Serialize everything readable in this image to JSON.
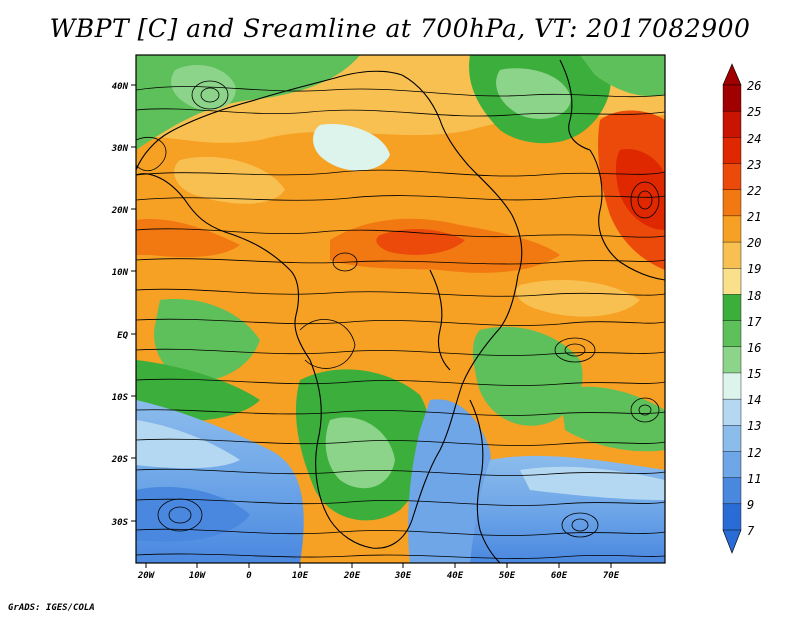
{
  "title": "WBPT [C] and Sreamline at 700hPa, VT: 2017082900",
  "credit": "GrADS: IGES/COLA",
  "map": {
    "lat_ticks": [
      "40N",
      "30N",
      "20N",
      "10N",
      "EQ",
      "10S",
      "20S",
      "30S"
    ],
    "lon_ticks": [
      "20W",
      "10W",
      "0",
      "10E",
      "20E",
      "30E",
      "40E",
      "50E",
      "60E",
      "70E"
    ]
  },
  "colorbar": {
    "labels": [
      "26",
      "25",
      "24",
      "23",
      "22",
      "21",
      "20",
      "19",
      "18",
      "17",
      "16",
      "15",
      "14",
      "13",
      "12",
      "11",
      "9",
      "7"
    ],
    "colors": [
      "#a00000",
      "#c81400",
      "#e02800",
      "#ec4a0a",
      "#f27812",
      "#f6a024",
      "#f8c050",
      "#fae08a",
      "#3cae3c",
      "#5ec05a",
      "#8cd48a",
      "#dcf4ec",
      "#b4d8f2",
      "#8cbcec",
      "#6ea6e8",
      "#4a88e0",
      "#2a6cd6"
    ]
  }
}
